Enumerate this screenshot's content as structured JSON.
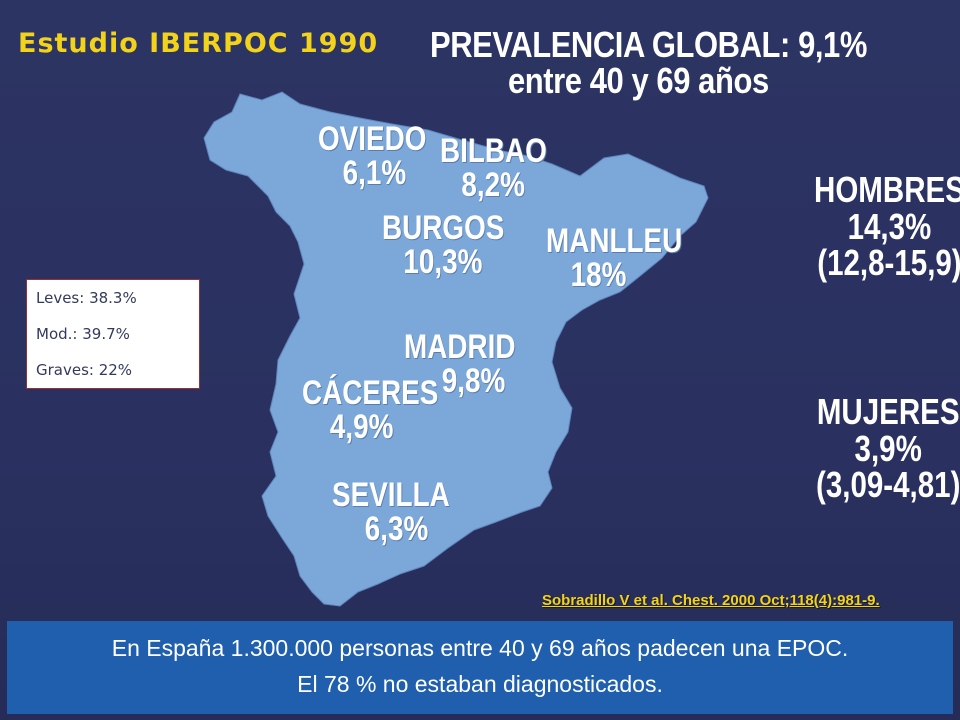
{
  "study_title": "Estudio IBERPOC 1990",
  "prevalence": {
    "line1": "PREVALENCIA GLOBAL: 9,1%",
    "line2": "entre 40 y 69 años"
  },
  "cities": [
    {
      "name": "OVIEDO",
      "value": "6,1%"
    },
    {
      "name": "BILBAO",
      "value": "8,2%"
    },
    {
      "name": "BURGOS",
      "value": "10,3%"
    },
    {
      "name": "MANLLEU",
      "value": "18%"
    },
    {
      "name": "MADRID",
      "value": "9,8%"
    },
    {
      "name": "CÁCERES",
      "value": "4,9%"
    },
    {
      "name": "SEVILLA",
      "value": "6,3%"
    }
  ],
  "men": {
    "label": "HOMBRES",
    "value": "14,3%",
    "range": "(12,8-15,9)"
  },
  "women": {
    "label": "MUJERES",
    "value": "3,9%",
    "range": "(3,09-4,81)"
  },
  "severity": {
    "mild": "Leves: 38.3%",
    "moderate": "Mod.: 39.7%",
    "severe": "Graves: 22%"
  },
  "citation": "Sobradillo V et al. Chest. 2000 Oct;118(4):981-9.",
  "summary": {
    "line1": "En España 1.300.000 personas entre 40 y 69 años padecen una EPOC.",
    "line2": "El 78 % no estaban diagnosticados."
  },
  "colors": {
    "background": "#2a3160",
    "map_fill": "#7ba7d9",
    "title": "#f3d21a",
    "summary_box": "#1f5fae"
  }
}
